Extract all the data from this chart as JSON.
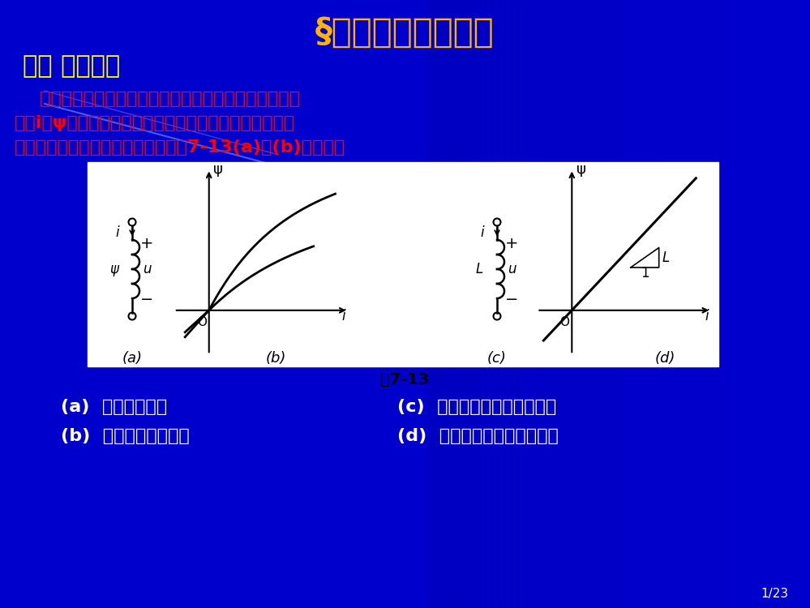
{
  "title": "§７－３　电感元件",
  "title_color": "#FFB400",
  "bg_color": "#0000CC",
  "section_label": "一、 电感元件",
  "section_color": "#FFFF00",
  "body_text_line1": "    假如一个二端元件在任一时刻，其磁通链与电流之间关",
  "body_text_line2": "系由i－ψ平面上一条曲线所确定，则称此二端元件为电感",
  "body_text_line3": "元件。电感元件符号和特征曲线如图7-13(a)和(b)所表示。",
  "body_text_color": "#FF0000",
  "fig_caption": "图7-13",
  "fig_caption_color": "#000000",
  "legend_lines": [
    "(a)  电感元件符号",
    "(b)  电感元件特征曲线",
    "(c)  线性时不变电感元件符号",
    "(d)  线性时不变电感特征曲线"
  ],
  "legend_color": "#FFFFFF",
  "page_num": "1/23",
  "page_num_color": "#FFFFFF"
}
